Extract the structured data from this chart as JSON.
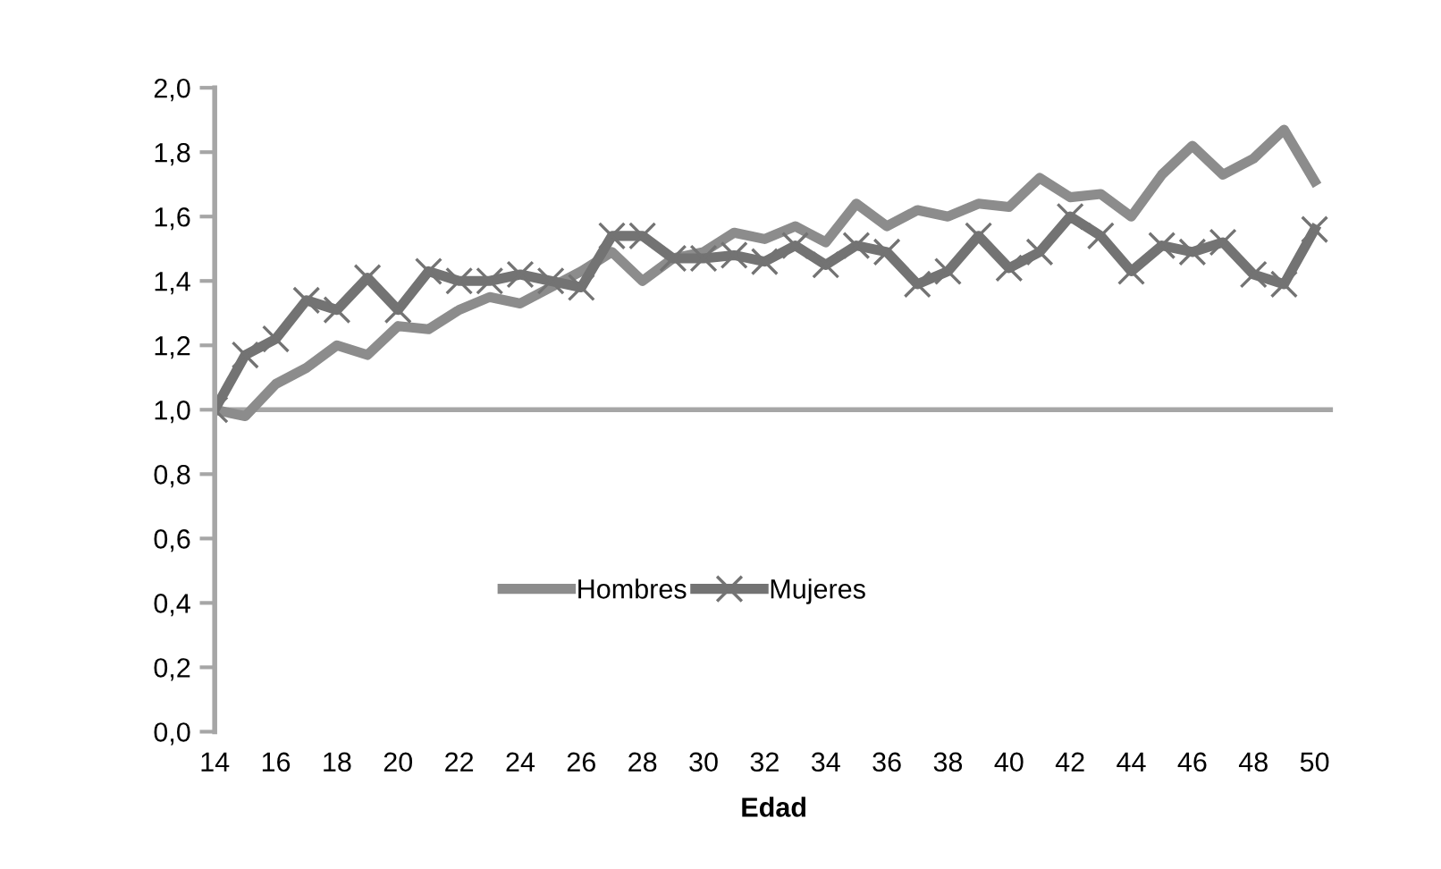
{
  "chart_data": {
    "type": "line",
    "xlabel": "Edad",
    "x": [
      14,
      15,
      16,
      17,
      18,
      19,
      20,
      21,
      22,
      23,
      24,
      25,
      26,
      27,
      28,
      29,
      30,
      31,
      32,
      33,
      34,
      35,
      36,
      37,
      38,
      39,
      40,
      41,
      42,
      43,
      44,
      45,
      46,
      47,
      48,
      49,
      50
    ],
    "series": [
      {
        "name": "Hombres",
        "color": "#8c8c8c",
        "marker": "none",
        "values": [
          1.0,
          0.98,
          1.08,
          1.13,
          1.2,
          1.17,
          1.26,
          1.25,
          1.31,
          1.35,
          1.33,
          1.38,
          1.43,
          1.49,
          1.4,
          1.47,
          1.49,
          1.55,
          1.53,
          1.57,
          1.52,
          1.64,
          1.57,
          1.62,
          1.6,
          1.64,
          1.63,
          1.72,
          1.66,
          1.67,
          1.6,
          1.73,
          1.82,
          1.73,
          1.78,
          1.87,
          1.71
        ]
      },
      {
        "name": "Mujeres",
        "color": "#737373",
        "marker": "cross",
        "values": [
          1.0,
          1.17,
          1.22,
          1.34,
          1.31,
          1.41,
          1.31,
          1.43,
          1.4,
          1.4,
          1.42,
          1.4,
          1.38,
          1.54,
          1.54,
          1.47,
          1.47,
          1.48,
          1.46,
          1.51,
          1.45,
          1.51,
          1.49,
          1.39,
          1.43,
          1.54,
          1.44,
          1.49,
          1.6,
          1.54,
          1.43,
          1.51,
          1.49,
          1.52,
          1.42,
          1.39,
          1.56
        ]
      }
    ],
    "xlim": [
      14,
      50.6
    ],
    "xticks": [
      14,
      16,
      18,
      20,
      22,
      24,
      26,
      28,
      30,
      32,
      34,
      36,
      38,
      40,
      42,
      44,
      46,
      48,
      50
    ],
    "ylim": [
      0,
      2.0
    ],
    "yticks": [
      {
        "value": 0,
        "label": "0,0"
      },
      {
        "value": 0.2,
        "label": "0,2"
      },
      {
        "value": 0.4,
        "label": "0,4"
      },
      {
        "value": 0.6,
        "label": "0,6"
      },
      {
        "value": 0.8,
        "label": "0,8"
      },
      {
        "value": 1.0,
        "label": "1,0"
      },
      {
        "value": 1.2,
        "label": "1,2"
      },
      {
        "value": 1.4,
        "label": "1,4"
      },
      {
        "value": 1.6,
        "label": "1,6"
      },
      {
        "value": 1.8,
        "label": "1,8"
      },
      {
        "value": 2.0,
        "label": "2,0"
      }
    ],
    "ref_lines": [
      {
        "axis": "y",
        "value": 1.0,
        "color": "#a6a6a6"
      }
    ],
    "grid": false,
    "legend": "bottom"
  }
}
